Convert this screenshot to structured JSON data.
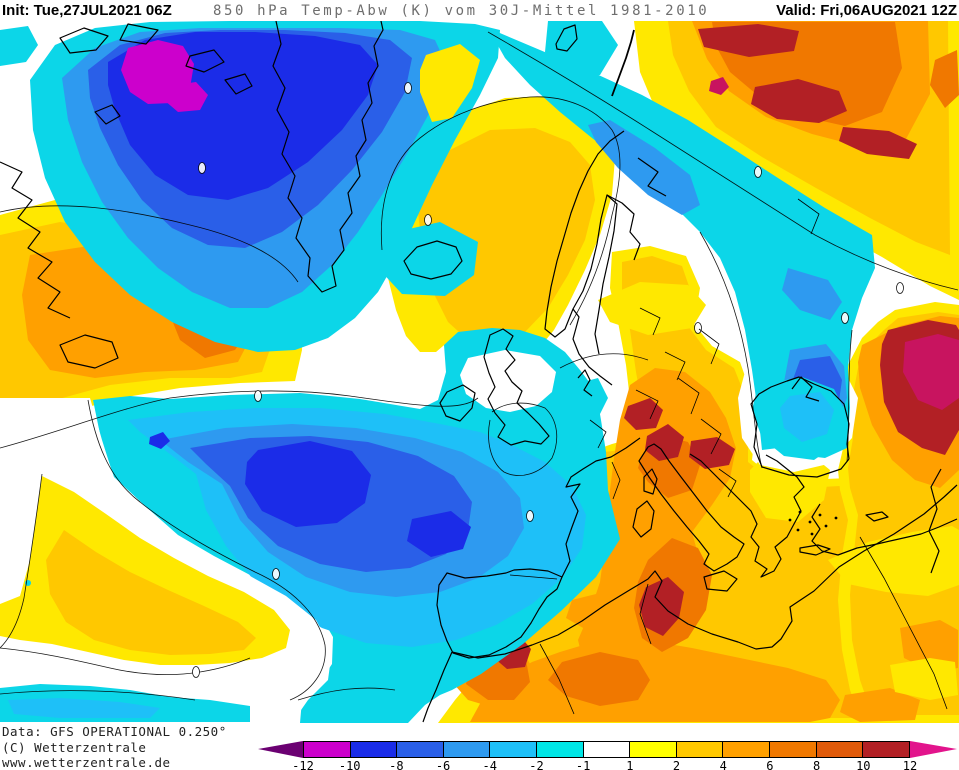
{
  "header": {
    "init_label_and_value": "Init: Tue,27JUL2021 06Z",
    "title": "850 hPa Temp-Abw (K) vom 30J-Mittel 1981-2010",
    "valid_label_and_value": "Valid: Fri,06AUG2021 12Z"
  },
  "footer": {
    "lines": "Data: GFS OPERATIONAL 0.250°\n(C) Wetterzentrale\nwww.wetterzentrale.de"
  },
  "legend": {
    "unit": "K",
    "tick_labels": [
      "-12",
      "-10",
      "-8",
      "-6",
      "-4",
      "-2",
      "-1",
      "1",
      "2",
      "4",
      "6",
      "8",
      "10",
      "12"
    ],
    "segment_colors": [
      "#CC00CC",
      "#1A2CE8",
      "#2A5FE8",
      "#2E9AF0",
      "#1EC0F8",
      "#00E6E6",
      "#FFFFFF",
      "#FFFF00",
      "#FFC800",
      "#FFA000",
      "#F07800",
      "#E05A0A",
      "#B22025"
    ],
    "arrow_left_color": "#6B0072",
    "arrow_right_color": "#E2148C"
  }
}
